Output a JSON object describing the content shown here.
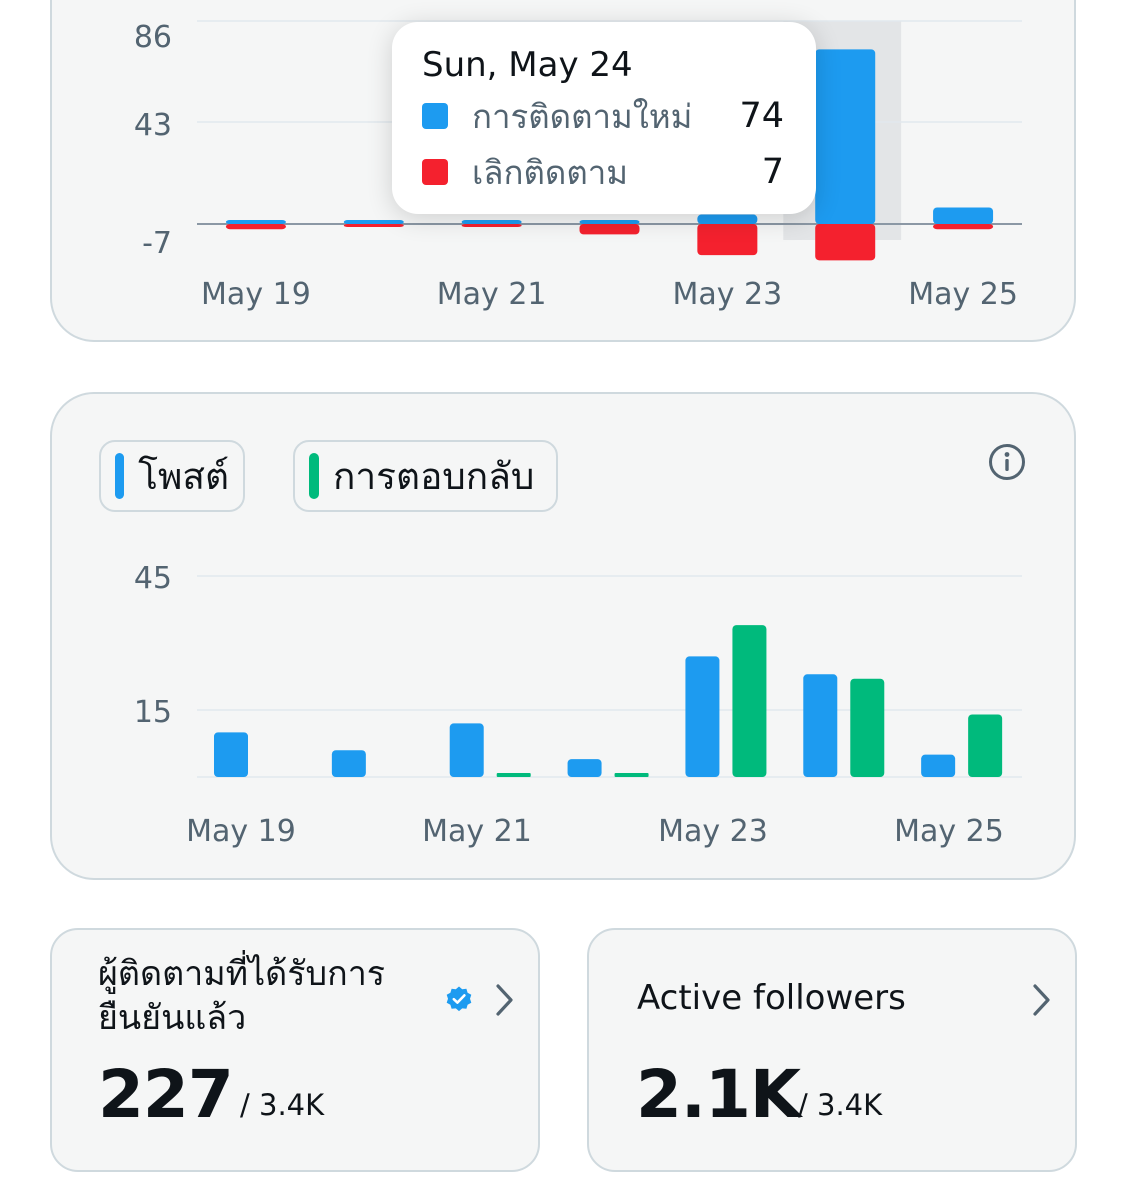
{
  "followers_chart": {
    "type": "bar",
    "y_ticks": [
      "86",
      "43",
      "-7"
    ],
    "x_tick_labels": [
      "May 19",
      "May 21",
      "May 23",
      "May 25"
    ],
    "categories": [
      "May 19",
      "May 20",
      "May 21",
      "May 22",
      "May 23",
      "May 24",
      "May 25"
    ],
    "series": [
      {
        "name": "การติดตามใหม่",
        "color": "#1d9bf0",
        "values": [
          1,
          1,
          1,
          1,
          4,
          74,
          7
        ]
      },
      {
        "name": "เลิกติดตาม",
        "color": "#f4212e",
        "values": [
          -1,
          0,
          0,
          -2,
          -6,
          -7,
          -1
        ]
      }
    ],
    "ylim": [
      -7,
      86
    ],
    "highlight_index": 5,
    "tooltip": {
      "date": "Sun, May 24",
      "rows": [
        {
          "label": "การติดตามใหม่",
          "value": "74",
          "color": "#1d9bf0"
        },
        {
          "label": "เลิกติดตาม",
          "value": "7",
          "color": "#f4212e"
        }
      ]
    }
  },
  "posts_chart": {
    "type": "bar",
    "legend": [
      {
        "label": "โพสต์",
        "color": "#1d9bf0"
      },
      {
        "label": "การตอบกลับ",
        "color": "#00ba7c"
      }
    ],
    "y_ticks": [
      "45",
      "15"
    ],
    "x_tick_labels": [
      "May 19",
      "May 21",
      "May 23",
      "May 25"
    ],
    "categories": [
      "May 19",
      "May 20",
      "May 21",
      "May 22",
      "May 23",
      "May 24",
      "May 25"
    ],
    "series": [
      {
        "name": "โพสต์",
        "color": "#1d9bf0",
        "values": [
          10,
          6,
          12,
          4,
          27,
          23,
          5
        ]
      },
      {
        "name": "การตอบกลับ",
        "color": "#00ba7c",
        "values": [
          0,
          0,
          1,
          1,
          34,
          22,
          14
        ]
      }
    ],
    "ylim": [
      0,
      45
    ],
    "info_icon": "info-icon"
  },
  "verified_card": {
    "title_line1": "ผู้ติดตามที่ได้รับการ",
    "title_line2": "ยืนยันแล้ว",
    "value": "227",
    "total": "/ 3.4K",
    "badge_icon": "verified-badge-icon",
    "badge_color": "#1d9bf0"
  },
  "active_card": {
    "title": "Active followers",
    "value": "2.1K",
    "total": "/ 3.4K"
  }
}
